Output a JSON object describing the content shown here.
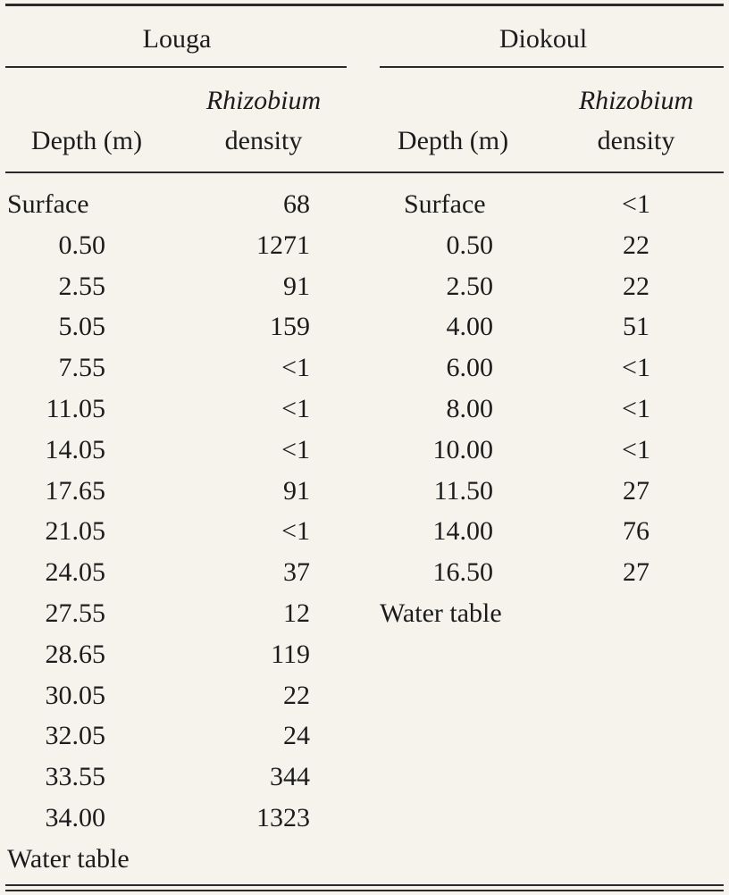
{
  "table": {
    "sites": [
      {
        "name": "Louga",
        "header": {
          "depth": "Depth (m)",
          "genus": "Rhizobium",
          "density": "density"
        },
        "rows": [
          [
            "Surface",
            "68"
          ],
          [
            "0.50",
            "1271"
          ],
          [
            "2.55",
            "91"
          ],
          [
            "5.05",
            "159"
          ],
          [
            "7.55",
            "<1"
          ],
          [
            "11.05",
            "<1"
          ],
          [
            "14.05",
            "<1"
          ],
          [
            "17.65",
            "91"
          ],
          [
            "21.05",
            "<1"
          ],
          [
            "24.05",
            "37"
          ],
          [
            "27.55",
            "12"
          ],
          [
            "28.65",
            "119"
          ],
          [
            "30.05",
            "22"
          ],
          [
            "32.05",
            "24"
          ],
          [
            "33.55",
            "344"
          ],
          [
            "34.00",
            "1323"
          ]
        ],
        "footer": "Water table"
      },
      {
        "name": "Diokoul",
        "header": {
          "depth": "Depth (m)",
          "genus": "Rhizobium",
          "density": "density"
        },
        "rows": [
          [
            "Surface",
            "<1"
          ],
          [
            "0.50",
            "22"
          ],
          [
            "2.50",
            "22"
          ],
          [
            "4.00",
            "51"
          ],
          [
            "6.00",
            "<1"
          ],
          [
            "8.00",
            "<1"
          ],
          [
            "10.00",
            "<1"
          ],
          [
            "11.50",
            "27"
          ],
          [
            "14.00",
            "76"
          ],
          [
            "16.50",
            "27"
          ]
        ],
        "footer": "Water table"
      }
    ]
  }
}
